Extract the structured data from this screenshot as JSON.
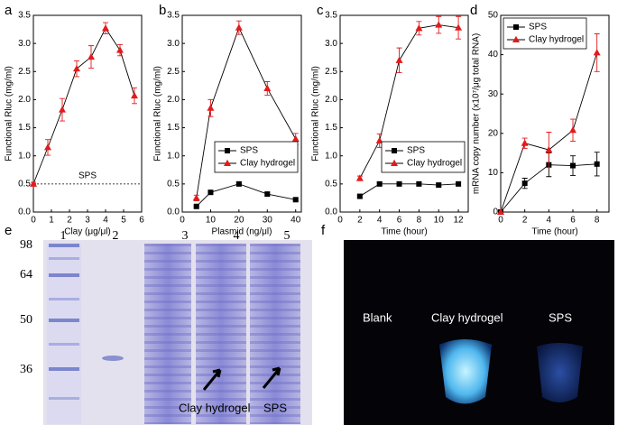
{
  "chart_data": [
    {
      "type": "line",
      "panel_label": "a",
      "x_label": "Clay (μg/μl)",
      "y_label": "Functional Rluc (mg/ml)",
      "xlim": [
        0,
        6
      ],
      "xticks": [
        0,
        1,
        2,
        3,
        4,
        5,
        6
      ],
      "ylim": [
        0,
        3.5
      ],
      "yticks": [
        {
          "value": 0,
          "label": "0.0"
        },
        0.5,
        {
          "value": 1,
          "label": "1.0"
        },
        1.5,
        {
          "value": 2,
          "label": "2.0"
        },
        2.5,
        {
          "value": 3,
          "label": "3.0"
        },
        3.5
      ],
      "x": [
        0,
        0.8,
        1.6,
        2.4,
        3.2,
        4,
        4.8,
        5.6
      ],
      "series": [
        {
          "color": "#e31a1c",
          "marker": "triangle",
          "values": [
            0.5,
            1.15,
            1.82,
            2.55,
            2.76,
            3.27,
            2.88,
            2.07
          ],
          "errors": [
            0.03,
            0.14,
            0.2,
            0.14,
            0.2,
            0.1,
            0.1,
            0.14
          ]
        }
      ],
      "reference_line": {
        "value": 0.5,
        "label": "SPS"
      }
    },
    {
      "type": "line",
      "panel_label": "b",
      "x_label": "Plasmid (ng/μl)",
      "y_label": "Functional Rluc (mg/ml)",
      "xlim": [
        0,
        42
      ],
      "xticks": [
        0,
        10,
        20,
        30,
        40
      ],
      "ylim": [
        0,
        3.5
      ],
      "yticks": [
        {
          "value": 0,
          "label": "0.0"
        },
        0.5,
        {
          "value": 1,
          "label": "1.0"
        },
        1.5,
        {
          "value": 2,
          "label": "2.0"
        },
        2.5,
        {
          "value": 3,
          "label": "3.0"
        },
        3.5
      ],
      "x": [
        5,
        10,
        20,
        30,
        40
      ],
      "legend": "lower right",
      "series": [
        {
          "name": "SPS",
          "color": "#000000",
          "marker": "square",
          "values": [
            0.1,
            0.35,
            0.5,
            0.32,
            0.22
          ],
          "errors": [
            0.02,
            0.03,
            0.03,
            0.03,
            0.02
          ]
        },
        {
          "name": "Clay hydrogel",
          "color": "#e31a1c",
          "marker": "triangle",
          "values": [
            0.25,
            1.85,
            3.28,
            2.2,
            1.3
          ],
          "errors": [
            0.05,
            0.15,
            0.12,
            0.12,
            0.1
          ]
        }
      ]
    },
    {
      "type": "line",
      "panel_label": "c",
      "x_label": "Time (hour)",
      "y_label": "Functional Rluc (mg/ml)",
      "xlim": [
        0,
        13
      ],
      "xticks": [
        0,
        2,
        4,
        6,
        8,
        10,
        12
      ],
      "ylim": [
        0,
        3.5
      ],
      "yticks": [
        {
          "value": 0,
          "label": "0.0"
        },
        0.5,
        {
          "value": 1,
          "label": "1.0"
        },
        1.5,
        {
          "value": 2,
          "label": "2.0"
        },
        2.5,
        {
          "value": 3,
          "label": "3.0"
        },
        3.5
      ],
      "x": [
        2,
        4,
        6,
        8,
        10,
        12
      ],
      "legend": "lower right",
      "series": [
        {
          "name": "SPS",
          "color": "#000000",
          "marker": "square",
          "values": [
            0.28,
            0.5,
            0.5,
            0.5,
            0.48,
            0.5
          ],
          "errors": [
            0.02,
            0.03,
            0.03,
            0.03,
            0.03,
            0.03
          ]
        },
        {
          "name": "Clay hydrogel",
          "color": "#e31a1c",
          "marker": "triangle",
          "values": [
            0.6,
            1.27,
            2.7,
            3.27,
            3.33,
            3.28
          ],
          "errors": [
            0.04,
            0.12,
            0.22,
            0.12,
            0.15,
            0.2
          ]
        }
      ]
    },
    {
      "type": "line",
      "panel_label": "d",
      "x_label": "Time (hour)",
      "y_label": "mRNA copy number (x10⁷/μg total RNA)",
      "xlim": [
        0,
        9
      ],
      "xticks": [
        0,
        2,
        4,
        6,
        8
      ],
      "ylim": [
        0,
        50
      ],
      "yticks": [
        0,
        10,
        20,
        30,
        40,
        50
      ],
      "x": [
        0,
        2,
        4,
        6,
        8
      ],
      "legend": "upper left",
      "series": [
        {
          "name": "SPS",
          "color": "#000000",
          "marker": "square",
          "values": [
            0,
            7.3,
            12,
            11.8,
            12.2
          ],
          "errors": [
            0,
            1.3,
            3,
            2.5,
            3
          ]
        },
        {
          "name": "Clay hydrogel",
          "color": "#e31a1c",
          "marker": "triangle",
          "values": [
            0,
            17.5,
            15.8,
            20.8,
            40.5
          ],
          "errors": [
            0,
            1.3,
            4.5,
            2.8,
            4.8
          ]
        }
      ]
    }
  ],
  "gel": {
    "panel_label": "e",
    "size_markers": [
      "98",
      "64",
      "50",
      "36"
    ],
    "lanes": [
      "1",
      "2",
      "3",
      "4",
      "5"
    ],
    "annotations": [
      "Clay hydrogel",
      "SPS"
    ]
  },
  "fluorescence": {
    "panel_label": "f",
    "labels": [
      "Blank",
      "Clay hydrogel",
      "SPS"
    ]
  }
}
